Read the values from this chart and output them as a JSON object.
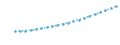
{
  "x": [
    0,
    1,
    2,
    3,
    4,
    5,
    6,
    7,
    8,
    9,
    10,
    11,
    12,
    13,
    14,
    15,
    16,
    17,
    18,
    19
  ],
  "y": [
    0.2,
    0.25,
    0.35,
    0.45,
    0.6,
    0.75,
    0.95,
    1.15,
    1.38,
    1.62,
    1.88,
    2.15,
    2.45,
    2.76,
    3.1,
    3.45,
    3.82,
    4.2,
    4.6,
    5.0
  ],
  "line_color": "#4da6d8",
  "background_color": "#000000",
  "fig_background": "#ffffff",
  "linewidth": 1.0,
  "linestyle": "dotted",
  "ylim": [
    0,
    5.5
  ],
  "xlim": [
    -0.5,
    19.5
  ]
}
